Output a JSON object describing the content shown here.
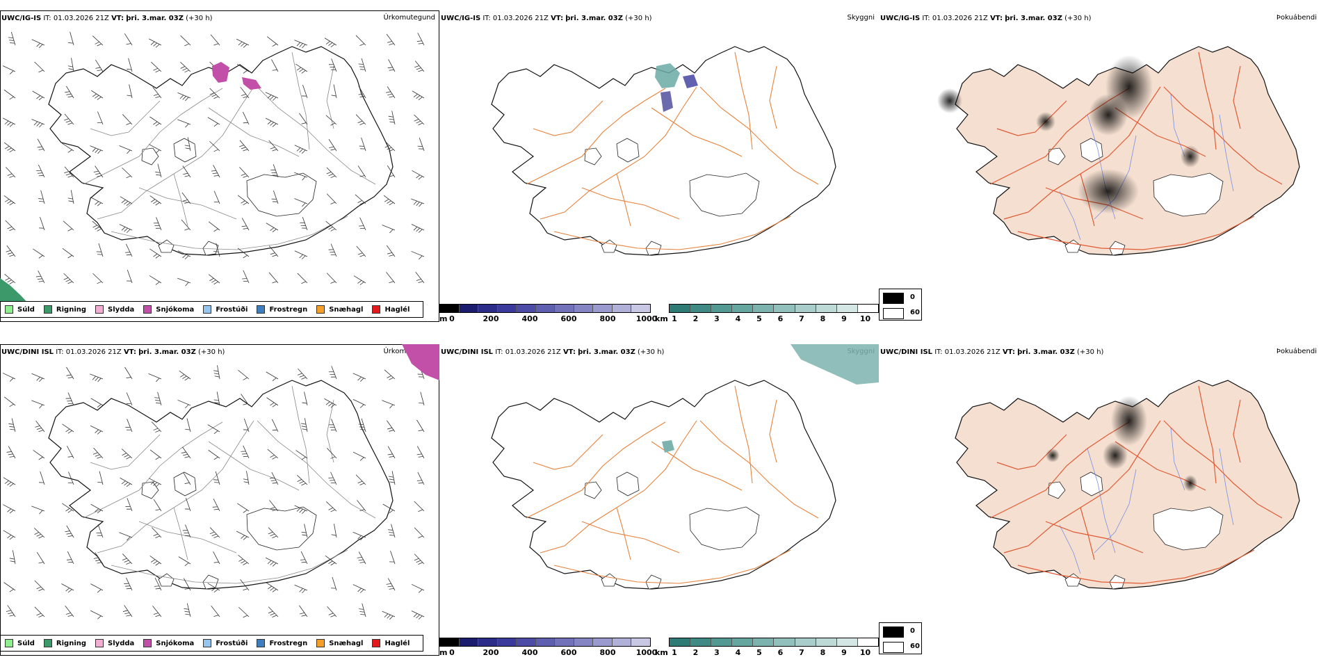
{
  "rows": [
    {
      "model": "UWC/IG-IS",
      "it_label": "IT:",
      "it_value": "01.03.2026 21Z",
      "vt_label": "VT:",
      "vt_value": "þri. 3.mar. 03Z",
      "lead": "(+30 h)"
    },
    {
      "model": "UWC/DINI ISL",
      "it_label": "IT:",
      "it_value": "01.03.2026 21Z",
      "vt_label": "VT:",
      "vt_value": "þri. 3.mar. 03Z",
      "lead": "(+30 h)"
    }
  ],
  "panel_types": {
    "precip": "Úrkomutegund",
    "visibility": "Skyggni",
    "fog": "Þokuábendi"
  },
  "precip_legend": [
    {
      "label": "Súld",
      "color": "#90ee90"
    },
    {
      "label": "Rigning",
      "color": "#3c9a6a"
    },
    {
      "label": "Slydda",
      "color": "#f4aed4"
    },
    {
      "label": "Snjókoma",
      "color": "#c24fa8"
    },
    {
      "label": "Frostúði",
      "color": "#94c6ef"
    },
    {
      "label": "Frostregn",
      "color": "#3d7fbf"
    },
    {
      "label": "Snæhagl",
      "color": "#f4a028"
    },
    {
      "label": "Haglél",
      "color": "#e31a1c"
    }
  ],
  "height_bar": {
    "unit": "m",
    "labels": [
      "0",
      "200",
      "400",
      "600",
      "800",
      "1000"
    ],
    "colors": [
      "#000000",
      "#1c1c6e",
      "#2b2b8a",
      "#3a3a9c",
      "#4c4ca6",
      "#5f5fb0",
      "#7272ba",
      "#8585c4",
      "#9a9ace",
      "#b0b0d8",
      "#c8c8e4"
    ]
  },
  "km_bar": {
    "unit": "km",
    "labels": [
      "1",
      "2",
      "3",
      "4",
      "5",
      "6",
      "7",
      "8",
      "9",
      "10"
    ],
    "colors": [
      "#2e7a74",
      "#3f8a84",
      "#529893",
      "#66a6a1",
      "#7cb3af",
      "#92c0bc",
      "#a8cdca",
      "#bedad7",
      "#d4e7e5",
      "#ffffff"
    ]
  },
  "fog_legend": {
    "values": [
      "0",
      "60"
    ],
    "colors": [
      "#000000",
      "#ffffff"
    ]
  }
}
